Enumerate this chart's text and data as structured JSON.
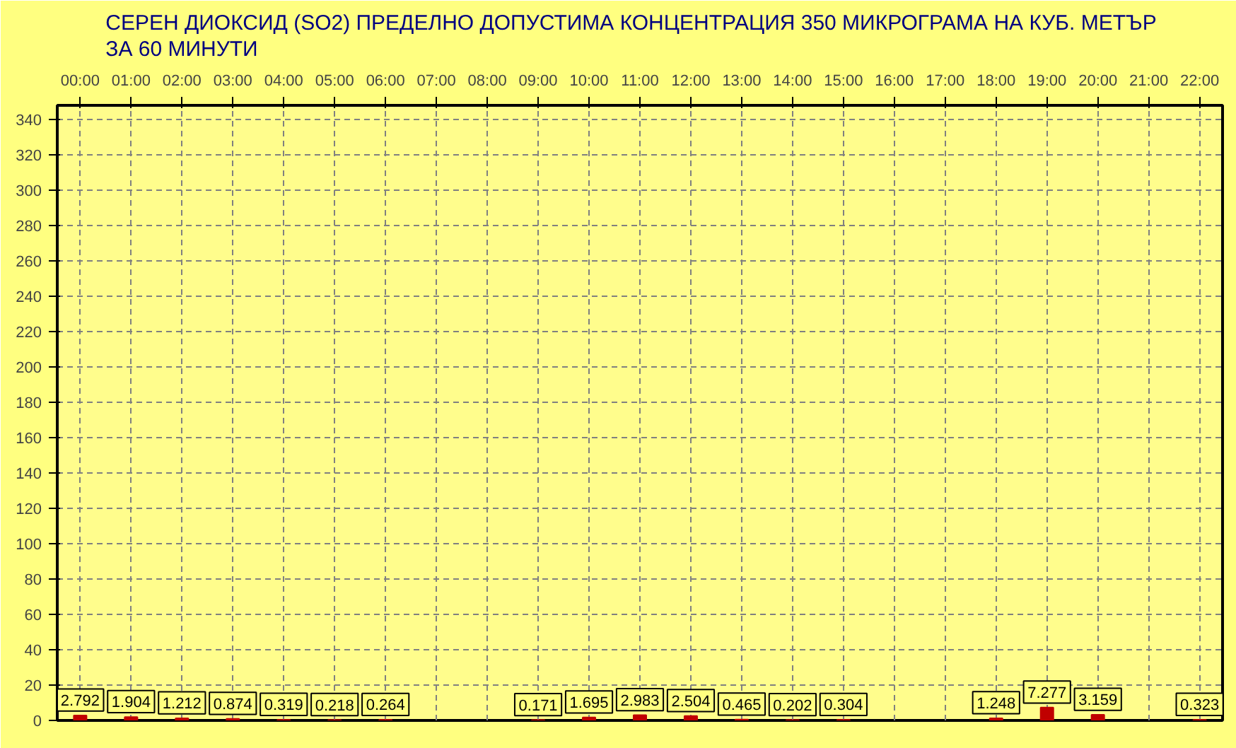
{
  "chart_data": {
    "type": "bar",
    "title": "СЕРЕН ДИОКСИД  (SO2)  ПРЕДЕЛНО ДОПУСТИМА КОНЦЕНТРАЦИЯ 350 МИКРОГРАМА  НА КУБ. МЕТЪР\nЗА 60 МИНУТИ",
    "categories": [
      "00:00",
      "01:00",
      "02:00",
      "03:00",
      "04:00",
      "05:00",
      "06:00",
      "07:00",
      "08:00",
      "09:00",
      "10:00",
      "11:00",
      "12:00",
      "13:00",
      "14:00",
      "15:00",
      "16:00",
      "17:00",
      "18:00",
      "19:00",
      "20:00",
      "21:00",
      "22:00"
    ],
    "values": [
      2.792,
      1.904,
      1.212,
      0.874,
      0.319,
      0.218,
      0.264,
      null,
      null,
      0.171,
      1.695,
      2.983,
      2.504,
      0.465,
      0.202,
      0.304,
      null,
      null,
      1.248,
      7.277,
      3.159,
      null,
      0.323
    ],
    "color": "#c00000",
    "ylim": [
      0,
      348
    ],
    "yticks": [
      0,
      20,
      40,
      60,
      80,
      100,
      120,
      140,
      160,
      180,
      200,
      220,
      240,
      260,
      280,
      300,
      320,
      340
    ],
    "grid": true,
    "data_labels": true
  }
}
